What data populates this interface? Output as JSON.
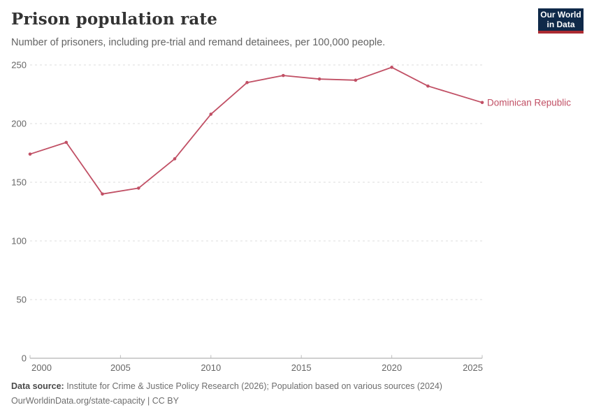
{
  "header": {
    "title": "Prison population rate",
    "subtitle": "Number of prisoners, including pre-trial and remand detainees, per 100,000 people.",
    "logo": {
      "line1": "Our World",
      "line2": "in Data",
      "bg_color": "#0f2949",
      "accent_color": "#ab2b32"
    }
  },
  "chart_data": {
    "type": "line",
    "title": "Prison population rate",
    "xlabel": "",
    "ylabel": "",
    "x": [
      2000,
      2002,
      2004,
      2006,
      2008,
      2010,
      2012,
      2014,
      2016,
      2018,
      2020,
      2022,
      2025
    ],
    "series": [
      {
        "name": "Dominican Republic",
        "color": "#C15065",
        "values": [
          174,
          184,
          140,
          145,
          170,
          208,
          235,
          241,
          238,
          237,
          248,
          232,
          218
        ]
      }
    ],
    "xticks": [
      2000,
      2005,
      2010,
      2015,
      2020,
      2025
    ],
    "yticks": [
      0,
      50,
      100,
      150,
      200,
      250
    ],
    "xlim": [
      2000,
      2025
    ],
    "ylim": [
      0,
      250
    ],
    "grid": "horizontal-dashed",
    "legend_position": "end-of-line-label",
    "grid_color": "#dcdcdc",
    "axis_color": "#a0a0a0",
    "tick_label_color": "#666666"
  },
  "footer": {
    "source_label": "Data source:",
    "source_text": " Institute for Crime & Justice Policy Research (2026); Population based on various sources (2024)",
    "link_text": "OurWorldinData.org/state-capacity | CC BY"
  }
}
